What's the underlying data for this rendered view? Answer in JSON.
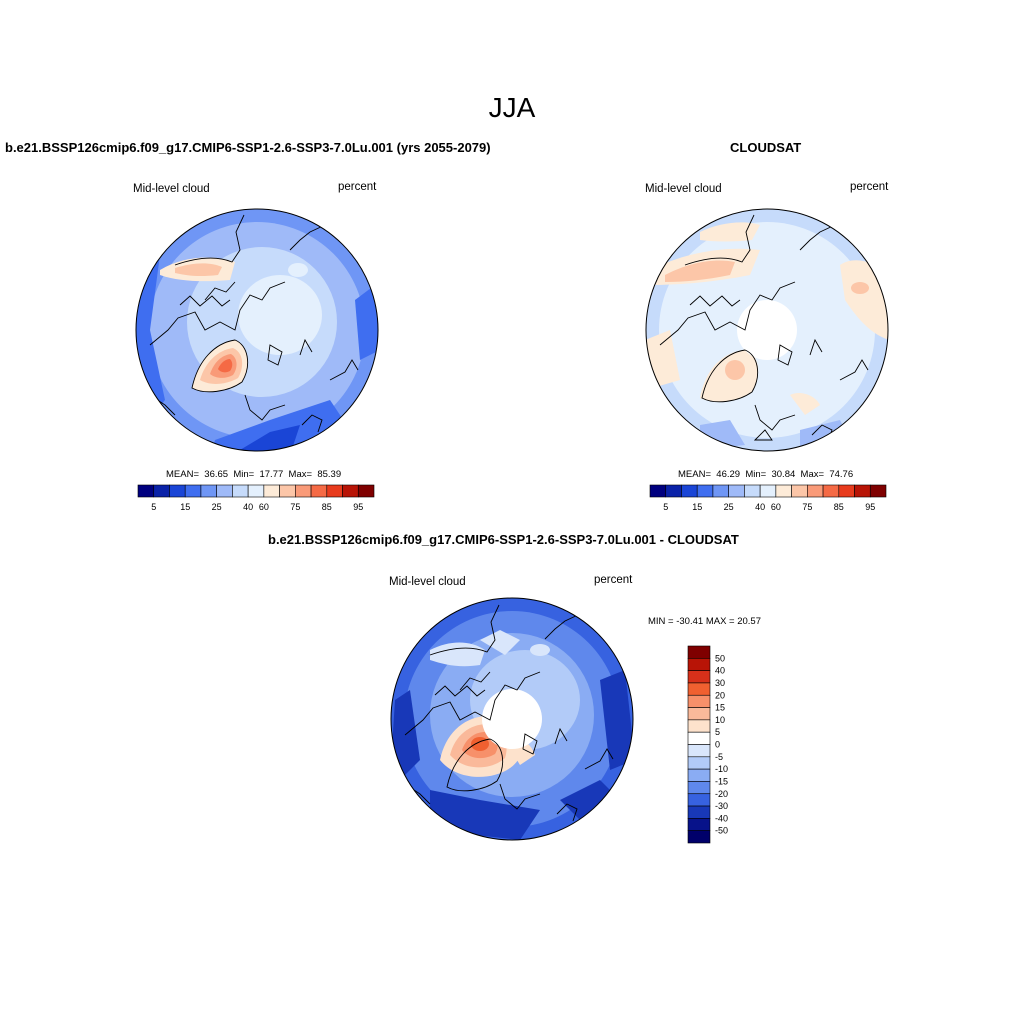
{
  "figure": {
    "season": "JJA"
  },
  "panels": [
    {
      "title": "b.e21.BSSP126cmip6.f09_g17.CMIP6-SSP1-2.6-SSP3-7.0Lu.001 (yrs 2055-2079)",
      "variable": "Mid-level cloud",
      "units": "percent",
      "stats": {
        "mean_label": "MEAN=",
        "mean": "36.65",
        "min_label": "Min=",
        "min": "17.77",
        "max_label": "Max=",
        "max": "85.39"
      },
      "colorbar_ticks": [
        "5",
        "15",
        "25",
        "40",
        "60",
        "75",
        "85",
        "95"
      ]
    },
    {
      "title": "CLOUDSAT",
      "variable": "Mid-level cloud",
      "units": "percent",
      "stats": {
        "mean_label": "MEAN=",
        "mean": "46.29",
        "min_label": "Min=",
        "min": "30.84",
        "max_label": "Max=",
        "max": "74.76"
      },
      "colorbar_ticks": [
        "5",
        "15",
        "25",
        "40",
        "60",
        "75",
        "85",
        "95"
      ]
    },
    {
      "title": "b.e21.BSSP126cmip6.f09_g17.CMIP6-SSP1-2.6-SSP3-7.0Lu.001 - CLOUDSAT",
      "variable": "Mid-level cloud",
      "units": "percent",
      "stats_text": "MIN = -30.41 MAX =  20.57",
      "colorbar_ticks": [
        "50",
        "40",
        "30",
        "20",
        "15",
        "10",
        "5",
        "0",
        "-5",
        "-10",
        "-15",
        "-20",
        "-30",
        "-40",
        "-50"
      ]
    }
  ],
  "colors": {
    "abs_scale": [
      "#00007f",
      "#0a22a8",
      "#1a45d6",
      "#3f6ef0",
      "#6f96f5",
      "#9fbaf8",
      "#c6dbfb",
      "#e4f0fd",
      "#fdebd8",
      "#fcc6a8",
      "#f99a78",
      "#f56a45",
      "#e83b1d",
      "#b81406",
      "#7f0000"
    ],
    "diff_scale": [
      "#7f0000",
      "#b81406",
      "#d7301a",
      "#f06030",
      "#f7906a",
      "#fab99a",
      "#fde2cc",
      "#ffffff",
      "#d9e6fb",
      "#b2cbf8",
      "#8aacf3",
      "#5f88ec",
      "#3762e0",
      "#1838b8",
      "#07128a",
      "#00006a"
    ],
    "land_outline": "#000000"
  }
}
